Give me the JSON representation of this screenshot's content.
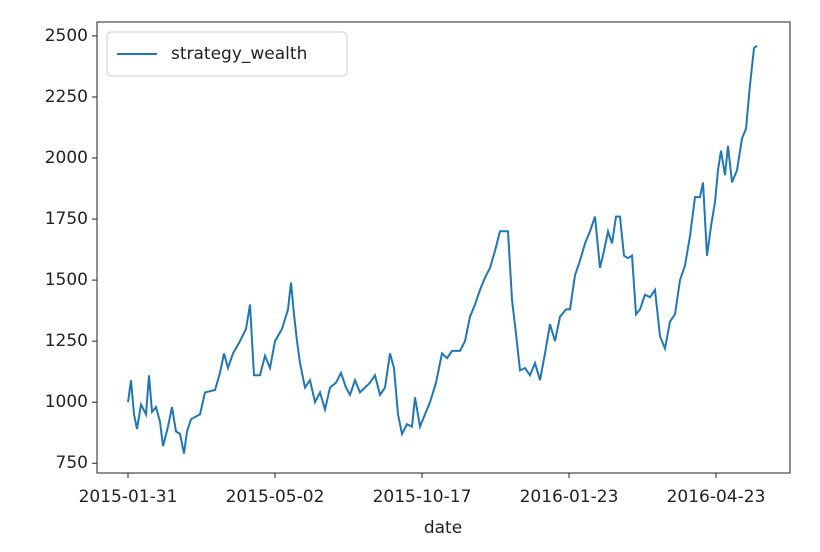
{
  "chart_data": {
    "type": "line",
    "xlabel": "date",
    "x": [
      0,
      3,
      6,
      9,
      13,
      18,
      21,
      24,
      28,
      32,
      35,
      40,
      44,
      48,
      52,
      56,
      59,
      63,
      72,
      77,
      87,
      92,
      96,
      100,
      105,
      112,
      118,
      122,
      126,
      132,
      137,
      142,
      147,
      154,
      160,
      163,
      166,
      169,
      172,
      177,
      182,
      187,
      192,
      197,
      202,
      208,
      213,
      218,
      222,
      227,
      232,
      237,
      242,
      247,
      252,
      257,
      262,
      266,
      270,
      274,
      279,
      284,
      287,
      292,
      297,
      302,
      308,
      314,
      319,
      324,
      332,
      337,
      342,
      347,
      352,
      357,
      362,
      367,
      372,
      380,
      384,
      388,
      392,
      397,
      402,
      407,
      412,
      417,
      422,
      427,
      432,
      438,
      442,
      447,
      452,
      457,
      462,
      467,
      472,
      476,
      480,
      484,
      488,
      492,
      496,
      500,
      504,
      508,
      512,
      517,
      522,
      527,
      532,
      537,
      542,
      547,
      552,
      557,
      562,
      567,
      572,
      575,
      579,
      583,
      587,
      590,
      593,
      597,
      600,
      604,
      609,
      614,
      618,
      622,
      626,
      629
    ],
    "series": [
      {
        "name": "strategy_wealth",
        "color": "#1f77b4",
        "values": [
          1000,
          1090,
          950,
          890,
          990,
          950,
          1110,
          960,
          980,
          920,
          820,
          900,
          980,
          880,
          870,
          790,
          880,
          930,
          950,
          1040,
          1050,
          1120,
          1200,
          1140,
          1200,
          1250,
          1300,
          1400,
          1110,
          1110,
          1190,
          1140,
          1250,
          1300,
          1380,
          1490,
          1360,
          1250,
          1160,
          1060,
          1090,
          1000,
          1040,
          970,
          1060,
          1080,
          1120,
          1060,
          1030,
          1090,
          1040,
          1060,
          1080,
          1110,
          1030,
          1060,
          1200,
          1140,
          950,
          870,
          910,
          900,
          1020,
          900,
          950,
          1000,
          1080,
          1200,
          1180,
          1210,
          1210,
          1250,
          1350,
          1400,
          1460,
          1510,
          1550,
          1620,
          1700,
          1700,
          1420,
          1280,
          1130,
          1140,
          1110,
          1160,
          1090,
          1200,
          1320,
          1250,
          1350,
          1380,
          1380,
          1520,
          1580,
          1650,
          1700,
          1760,
          1550,
          1620,
          1700,
          1650,
          1760,
          1760,
          1600,
          1590,
          1600,
          1360,
          1380,
          1440,
          1430,
          1460,
          1270,
          1220,
          1330,
          1360,
          1500,
          1560,
          1680,
          1840,
          1840,
          1900,
          1600,
          1720,
          1820,
          1950,
          2030,
          1930,
          2050,
          1900,
          1950,
          2080,
          2120,
          2300,
          2450,
          2460
        ]
      }
    ],
    "xlim": [
      -31,
      662
    ],
    "xticks": [
      {
        "value": 0,
        "label": "2015-01-31"
      },
      {
        "value": 147,
        "label": "2015-05-02"
      },
      {
        "value": 294,
        "label": "2015-10-17"
      },
      {
        "value": 441,
        "label": "2016-01-23"
      },
      {
        "value": 588,
        "label": "2016-04-23"
      }
    ],
    "ylim": [
      710,
      2557
    ],
    "yticks": [
      750,
      1000,
      1250,
      1500,
      1750,
      2000,
      2250,
      2500
    ],
    "legend": "upper left"
  }
}
